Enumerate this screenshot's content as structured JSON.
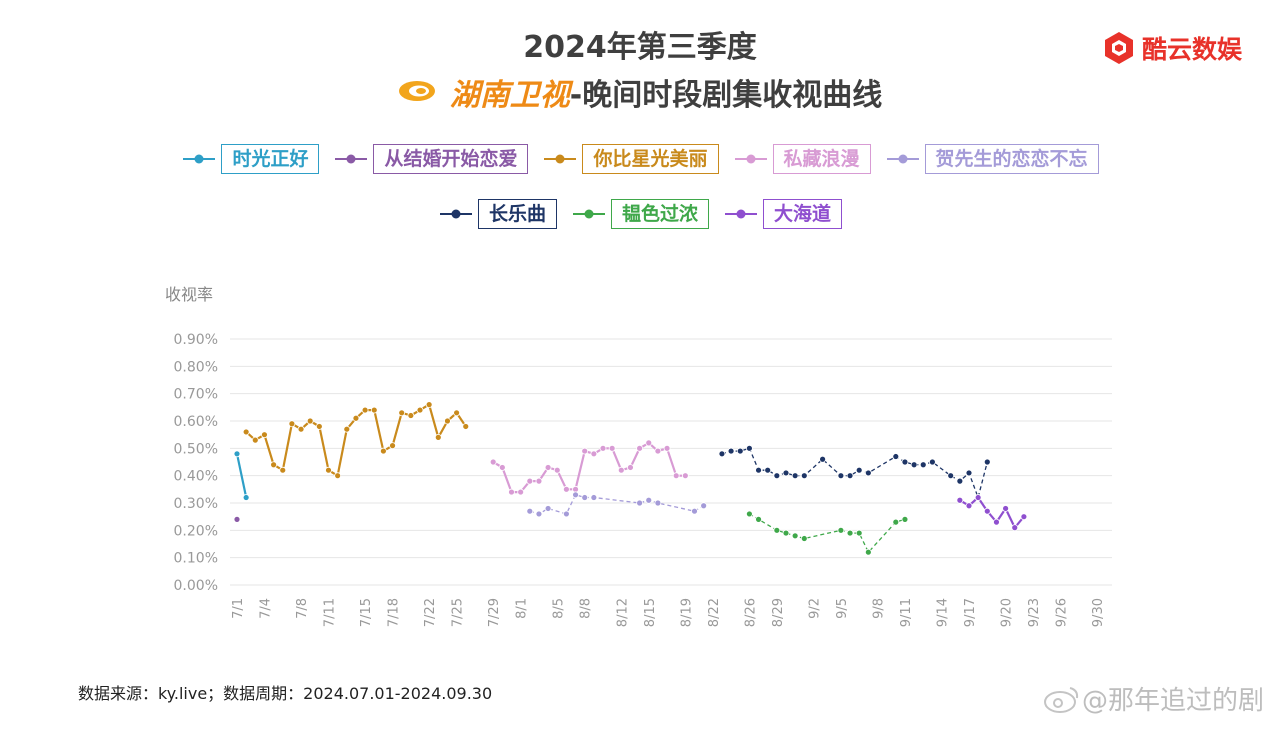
{
  "header": {
    "title_line1": "2024年第三季度",
    "channel": "湖南卫视",
    "title_line2_rest": "-晚间时段剧集收视曲线",
    "brand": "酷云数娱"
  },
  "footer": {
    "source": "数据来源：ky.live；数据周期：2024.07.01-2024.09.30",
    "watermark": "@那年追过的剧"
  },
  "colors": {
    "grid": "#e6e6e6",
    "axis_text": "#999999",
    "brand_red": "#e8322a",
    "channel_orange": "#ee8a16"
  },
  "chart_data": {
    "type": "line",
    "title": "",
    "ylabel": "收视率",
    "xlabel": "",
    "ylim": [
      0,
      0.9
    ],
    "y_ticks": [
      0,
      0.1,
      0.2,
      0.3,
      0.4,
      0.5,
      0.6,
      0.7,
      0.8,
      0.9
    ],
    "y_tick_labels": [
      "0.00%",
      "0.10%",
      "0.20%",
      "0.30%",
      "0.40%",
      "0.50%",
      "0.60%",
      "0.70%",
      "0.80%",
      "0.90%"
    ],
    "x_ticks": [
      {
        "day": 1,
        "label": "7/1"
      },
      {
        "day": 4,
        "label": "7/4"
      },
      {
        "day": 8,
        "label": "7/8"
      },
      {
        "day": 11,
        "label": "7/11"
      },
      {
        "day": 15,
        "label": "7/15"
      },
      {
        "day": 18,
        "label": "7/18"
      },
      {
        "day": 22,
        "label": "7/22"
      },
      {
        "day": 25,
        "label": "7/25"
      },
      {
        "day": 29,
        "label": "7/29"
      },
      {
        "day": 32,
        "label": "8/1"
      },
      {
        "day": 36,
        "label": "8/5"
      },
      {
        "day": 39,
        "label": "8/8"
      },
      {
        "day": 43,
        "label": "8/12"
      },
      {
        "day": 46,
        "label": "8/15"
      },
      {
        "day": 50,
        "label": "8/19"
      },
      {
        "day": 53,
        "label": "8/22"
      },
      {
        "day": 57,
        "label": "8/26"
      },
      {
        "day": 60,
        "label": "8/29"
      },
      {
        "day": 64,
        "label": "9/2"
      },
      {
        "day": 67,
        "label": "9/5"
      },
      {
        "day": 71,
        "label": "9/8"
      },
      {
        "day": 74,
        "label": "9/11"
      },
      {
        "day": 78,
        "label": "9/14"
      },
      {
        "day": 81,
        "label": "9/17"
      },
      {
        "day": 85,
        "label": "9/20"
      },
      {
        "day": 88,
        "label": "9/23"
      },
      {
        "day": 91,
        "label": "9/26"
      },
      {
        "day": 95,
        "label": "9/30"
      }
    ],
    "legend_row1": [
      "时光正好",
      "从结婚开始恋爱",
      "你比星光美丽",
      "私藏浪漫",
      "贺先生的恋恋不忘"
    ],
    "legend_row2": [
      "长乐曲",
      "韫色过浓",
      "大海道"
    ],
    "series": [
      {
        "name": "时光正好",
        "color": "#2e9fc7",
        "dash": false,
        "points": [
          [
            1,
            0.48
          ],
          [
            2,
            0.32
          ]
        ]
      },
      {
        "name": "从结婚开始恋爱",
        "color": "#8a5aa6",
        "dash": false,
        "points": [
          [
            1,
            0.24
          ]
        ]
      },
      {
        "name": "你比星光美丽",
        "color": "#c98a1c",
        "dash": false,
        "points": [
          [
            2,
            0.56
          ],
          [
            3,
            0.53
          ],
          [
            4,
            0.55
          ],
          [
            5,
            0.44
          ],
          [
            6,
            0.42
          ],
          [
            7,
            0.59
          ],
          [
            8,
            0.57
          ],
          [
            9,
            0.6
          ],
          [
            10,
            0.58
          ],
          [
            11,
            0.42
          ],
          [
            12,
            0.4
          ],
          [
            13,
            0.57
          ],
          [
            14,
            0.61
          ],
          [
            15,
            0.64
          ],
          [
            16,
            0.64
          ],
          [
            17,
            0.49
          ],
          [
            18,
            0.51
          ],
          [
            19,
            0.63
          ],
          [
            20,
            0.62
          ],
          [
            21,
            0.64
          ],
          [
            22,
            0.66
          ],
          [
            23,
            0.54
          ],
          [
            24,
            0.6
          ],
          [
            25,
            0.63
          ],
          [
            26,
            0.58
          ]
        ]
      },
      {
        "name": "私藏浪漫",
        "color": "#d89bd4",
        "dash": false,
        "points": [
          [
            29,
            0.45
          ],
          [
            30,
            0.43
          ],
          [
            31,
            0.34
          ],
          [
            32,
            0.34
          ],
          [
            33,
            0.38
          ],
          [
            34,
            0.38
          ],
          [
            35,
            0.43
          ],
          [
            36,
            0.42
          ],
          [
            37,
            0.35
          ],
          [
            38,
            0.35
          ],
          [
            39,
            0.49
          ],
          [
            40,
            0.48
          ],
          [
            41,
            0.5
          ],
          [
            42,
            0.5
          ],
          [
            43,
            0.42
          ],
          [
            44,
            0.43
          ],
          [
            45,
            0.5
          ],
          [
            46,
            0.52
          ],
          [
            47,
            0.49
          ],
          [
            48,
            0.5
          ],
          [
            49,
            0.4
          ],
          [
            50,
            0.4
          ]
        ]
      },
      {
        "name": "贺先生的恋恋不忘",
        "color": "#a49bd8",
        "dash": true,
        "points": [
          [
            33,
            0.27
          ],
          [
            34,
            0.26
          ],
          [
            35,
            0.28
          ],
          [
            37,
            0.26
          ],
          [
            38,
            0.33
          ],
          [
            39,
            0.32
          ],
          [
            40,
            0.32
          ],
          [
            45,
            0.3
          ],
          [
            46,
            0.31
          ],
          [
            47,
            0.3
          ],
          [
            51,
            0.27
          ],
          [
            52,
            0.29
          ]
        ]
      },
      {
        "name": "长乐曲",
        "color": "#1e3566",
        "dash": true,
        "points": [
          [
            54,
            0.48
          ],
          [
            55,
            0.49
          ],
          [
            56,
            0.49
          ],
          [
            57,
            0.5
          ],
          [
            58,
            0.42
          ],
          [
            59,
            0.42
          ],
          [
            60,
            0.4
          ],
          [
            61,
            0.41
          ],
          [
            62,
            0.4
          ],
          [
            63,
            0.4
          ],
          [
            65,
            0.46
          ],
          [
            67,
            0.4
          ],
          [
            68,
            0.4
          ],
          [
            69,
            0.42
          ],
          [
            70,
            0.41
          ],
          [
            73,
            0.47
          ],
          [
            74,
            0.45
          ],
          [
            75,
            0.44
          ],
          [
            76,
            0.44
          ],
          [
            77,
            0.45
          ],
          [
            79,
            0.4
          ],
          [
            80,
            0.38
          ],
          [
            81,
            0.41
          ],
          [
            82,
            0.32
          ],
          [
            83,
            0.45
          ]
        ]
      },
      {
        "name": "韫色过浓",
        "color": "#3fa84a",
        "dash": true,
        "points": [
          [
            57,
            0.26
          ],
          [
            58,
            0.24
          ],
          [
            60,
            0.2
          ],
          [
            61,
            0.19
          ],
          [
            62,
            0.18
          ],
          [
            63,
            0.17
          ],
          [
            67,
            0.2
          ],
          [
            68,
            0.19
          ],
          [
            69,
            0.19
          ],
          [
            70,
            0.12
          ],
          [
            73,
            0.23
          ],
          [
            74,
            0.24
          ]
        ]
      },
      {
        "name": "大海道",
        "color": "#8f4fcf",
        "dash": false,
        "points": [
          [
            80,
            0.31
          ],
          [
            81,
            0.29
          ],
          [
            82,
            0.32
          ],
          [
            83,
            0.27
          ],
          [
            84,
            0.23
          ],
          [
            85,
            0.28
          ],
          [
            86,
            0.21
          ],
          [
            87,
            0.25
          ]
        ]
      }
    ]
  }
}
